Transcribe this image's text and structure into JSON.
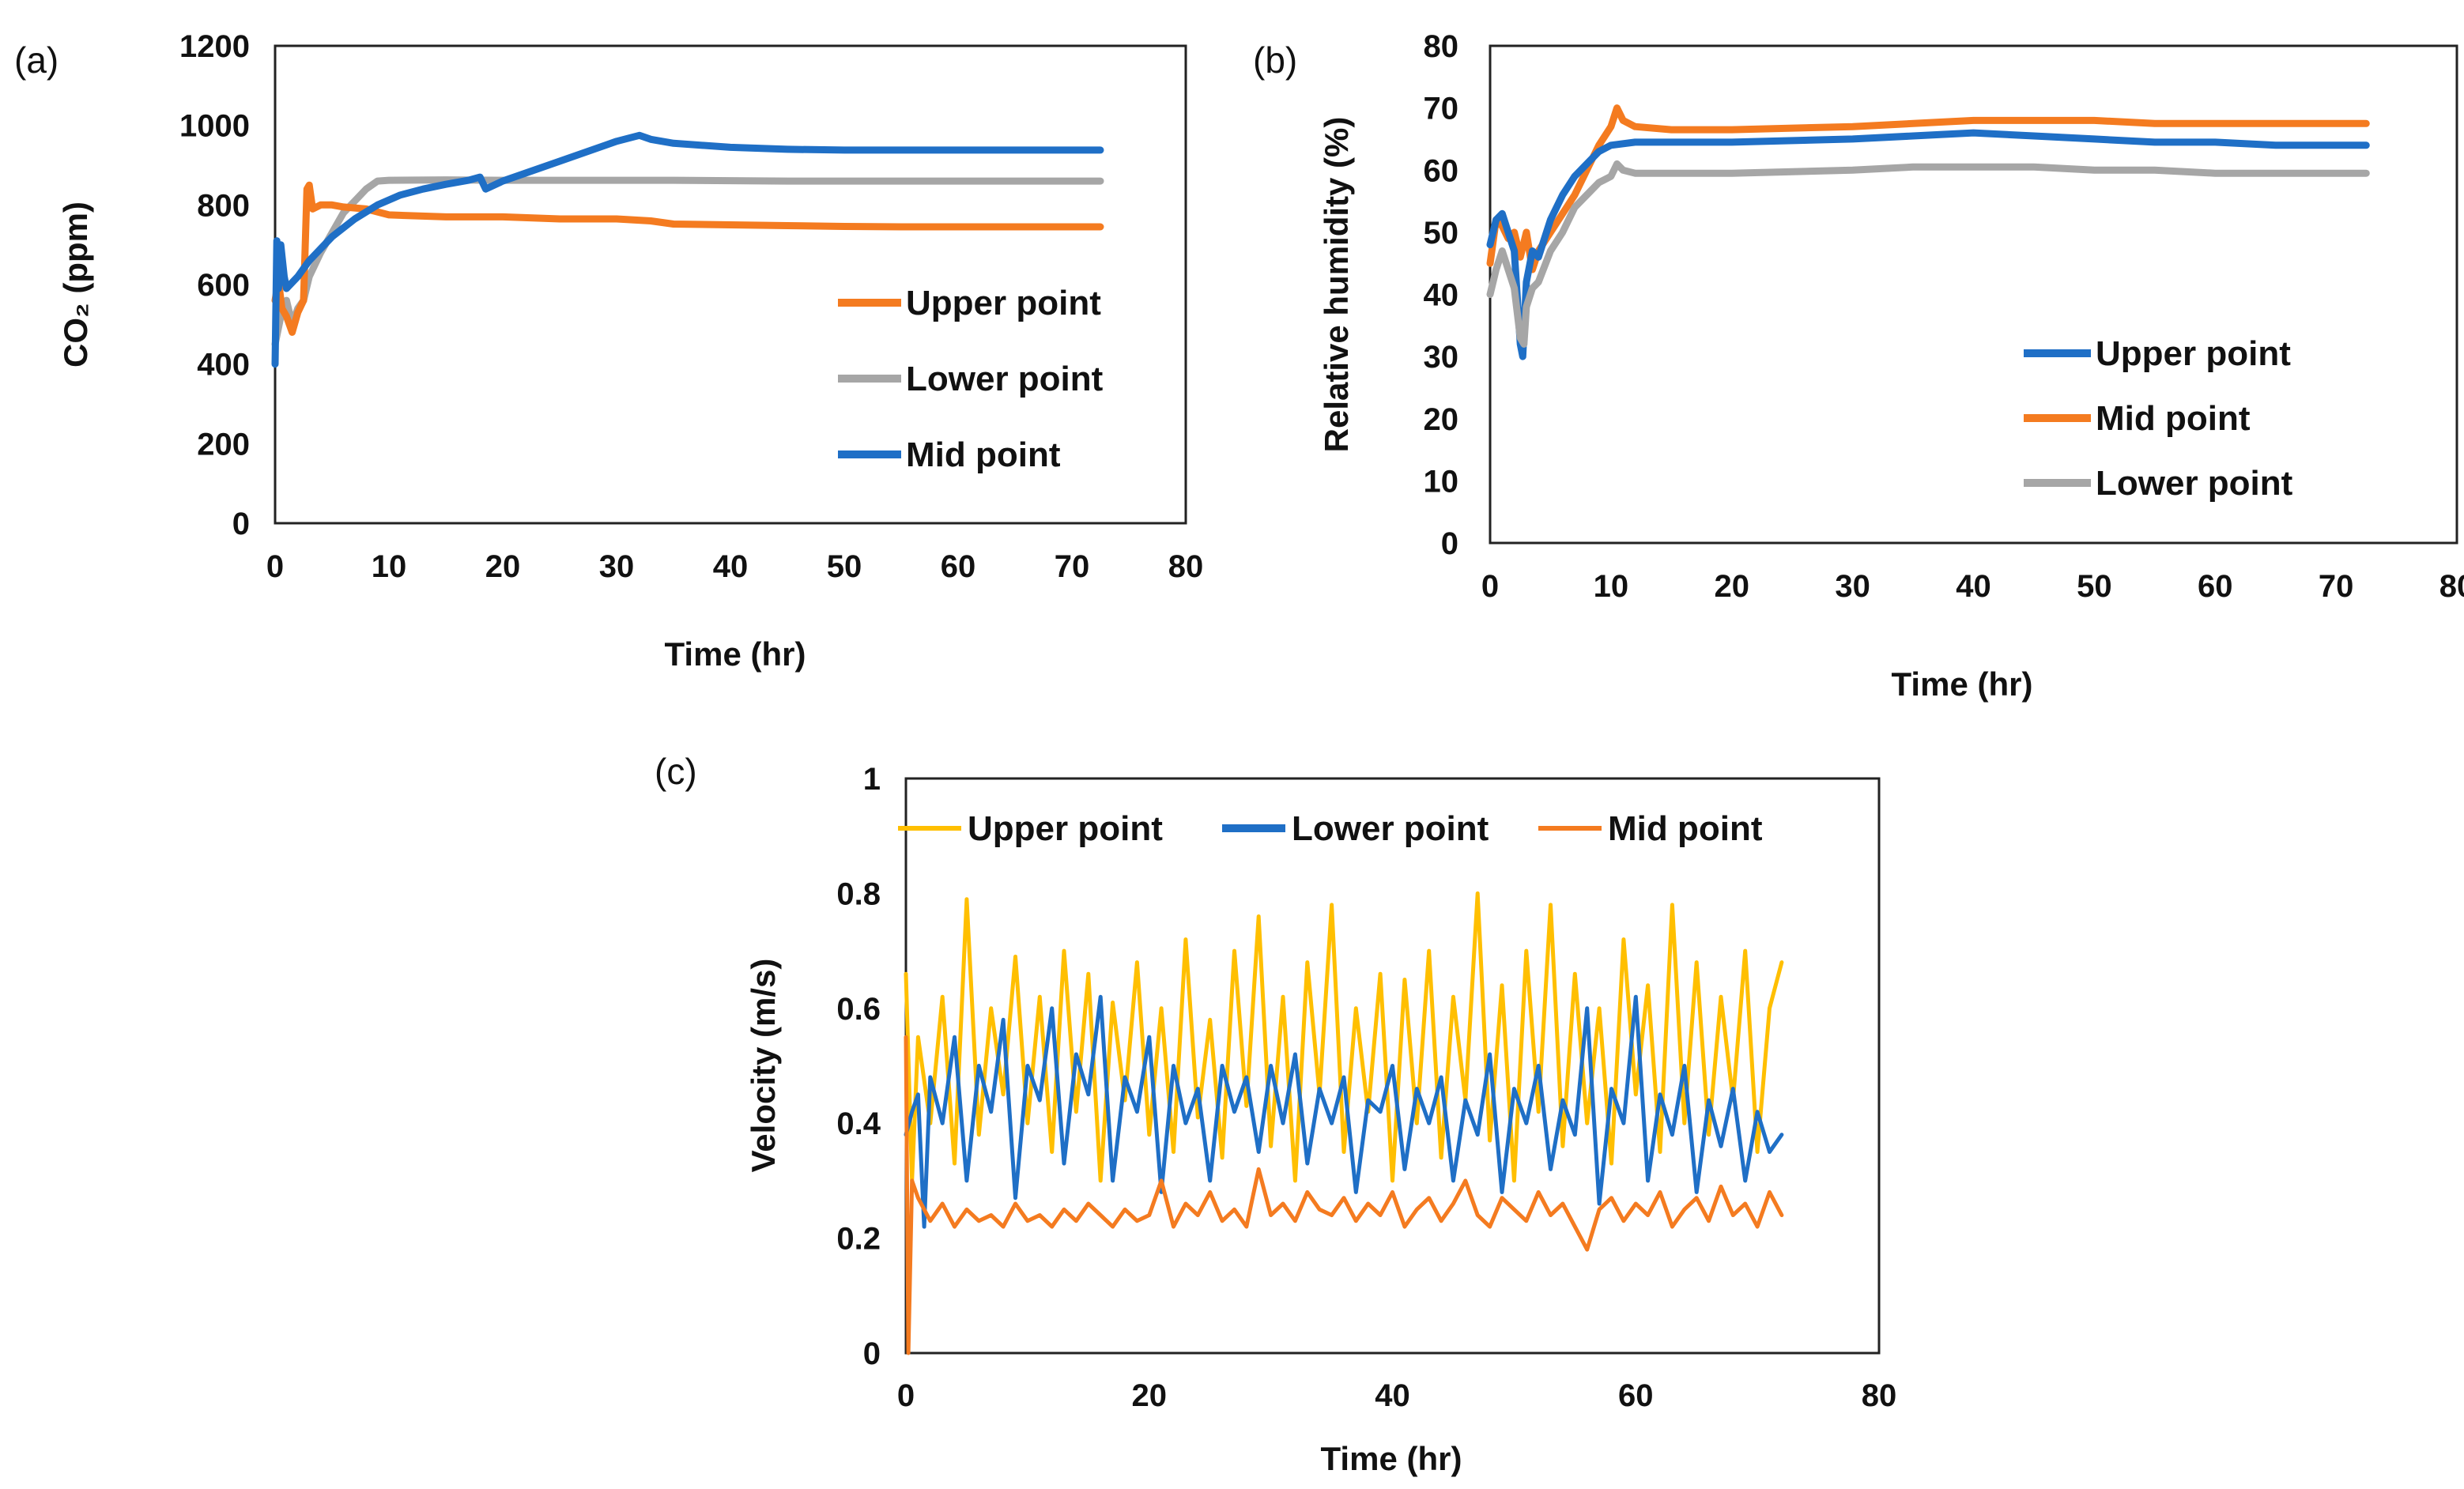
{
  "figure_labels": {
    "a": "(a)",
    "b": "(b)",
    "c": "(c)"
  },
  "colors": {
    "orange": "#F47B20",
    "gray": "#A6A6A6",
    "blue": "#1F6FC6",
    "yellow": "#FFBF00"
  },
  "chart_data": [
    {
      "type": "line",
      "panel": "(a)",
      "title": "",
      "xlabel": "Time (hr)",
      "ylabel": "CO₂ (ppm)",
      "xlim": [
        0,
        80
      ],
      "ylim": [
        0,
        1200
      ],
      "xticks": [
        0,
        10,
        20,
        30,
        40,
        50,
        60,
        70,
        80
      ],
      "yticks": [
        0,
        200,
        400,
        600,
        800,
        1000,
        1200
      ],
      "legend_position": "right",
      "series": [
        {
          "name": "Upper point",
          "color": "#F47B20",
          "x": [
            0,
            0.3,
            0.6,
            1,
            1.5,
            2,
            2.5,
            2.8,
            3.0,
            3.3,
            4,
            5,
            6,
            8,
            10,
            15,
            20,
            25,
            30,
            33,
            35,
            40,
            45,
            50,
            55,
            60,
            65,
            70,
            72.5
          ],
          "y": [
            560,
            610,
            540,
            520,
            480,
            530,
            560,
            840,
            850,
            790,
            800,
            800,
            795,
            790,
            775,
            770,
            770,
            765,
            765,
            760,
            752,
            750,
            748,
            746,
            745,
            745,
            745,
            745,
            745
          ]
        },
        {
          "name": "Lower point",
          "color": "#A6A6A6",
          "x": [
            0,
            0.5,
            1,
            1.5,
            2,
            2.5,
            3,
            4,
            5,
            6,
            7,
            8,
            9,
            10,
            15,
            20,
            25,
            30,
            35,
            40,
            45,
            50,
            55,
            60,
            65,
            70,
            72.5
          ],
          "y": [
            450,
            520,
            560,
            500,
            540,
            560,
            620,
            680,
            730,
            780,
            810,
            840,
            860,
            862,
            863,
            862,
            862,
            862,
            862,
            861,
            860,
            860,
            860,
            860,
            860,
            860,
            860
          ]
        },
        {
          "name": "Mid point",
          "color": "#1F6FC6",
          "x": [
            0,
            0.15,
            0.3,
            0.5,
            0.8,
            1,
            2,
            3,
            5,
            7,
            9,
            11,
            13,
            15,
            17,
            18,
            18.5,
            20,
            25,
            30,
            32,
            33,
            35,
            40,
            45,
            50,
            55,
            60,
            65,
            70,
            72.5
          ],
          "y": [
            400,
            710,
            590,
            700,
            620,
            590,
            620,
            660,
            720,
            765,
            800,
            825,
            840,
            852,
            862,
            870,
            840,
            860,
            910,
            960,
            975,
            965,
            955,
            945,
            940,
            938,
            938,
            938,
            938,
            938,
            938
          ]
        }
      ]
    },
    {
      "type": "line",
      "panel": "(b)",
      "title": "",
      "xlabel": "Time (hr)",
      "ylabel": "Relative humidity (%)",
      "xlim": [
        0,
        80
      ],
      "ylim": [
        0,
        80
      ],
      "xticks": [
        0,
        10,
        20,
        30,
        40,
        50,
        60,
        70,
        80
      ],
      "yticks": [
        0,
        10,
        20,
        30,
        40,
        50,
        60,
        70,
        80
      ],
      "legend_position": "right",
      "series": [
        {
          "name": "Upper point",
          "color": "#1F6FC6",
          "x": [
            0,
            0.5,
            1,
            1.5,
            2,
            2.5,
            2.7,
            3,
            3.5,
            4,
            5,
            6,
            7,
            8,
            9,
            10,
            12,
            15,
            20,
            30,
            35,
            40,
            45,
            50,
            55,
            60,
            65,
            70,
            72.5
          ],
          "y": [
            48,
            52,
            53,
            50,
            47,
            32,
            30,
            42,
            47,
            46,
            52,
            56,
            59,
            61,
            63,
            64,
            64.5,
            64.5,
            64.5,
            65,
            65.5,
            66,
            65.5,
            65,
            64.5,
            64.5,
            64,
            64,
            64
          ]
        },
        {
          "name": "Mid point",
          "color": "#F47B20",
          "x": [
            0,
            0.5,
            1,
            1.5,
            2,
            2.5,
            3,
            3.5,
            4,
            5,
            6,
            7,
            8,
            9,
            10,
            10.5,
            11,
            12,
            15,
            20,
            30,
            35,
            40,
            45,
            50,
            55,
            60,
            65,
            70,
            72.5
          ],
          "y": [
            45,
            52,
            51,
            49,
            50,
            46,
            50,
            44,
            47,
            50,
            53,
            56,
            60,
            64,
            67,
            70,
            68,
            67,
            66.5,
            66.5,
            67,
            67.5,
            68,
            68,
            68,
            67.5,
            67.5,
            67.5,
            67.5,
            67.5
          ]
        },
        {
          "name": "Lower point",
          "color": "#A6A6A6",
          "x": [
            0,
            0.5,
            1,
            1.5,
            2,
            2.5,
            2.8,
            3,
            3.5,
            4,
            5,
            6,
            7,
            8,
            9,
            10,
            10.5,
            11,
            12,
            15,
            20,
            30,
            35,
            40,
            45,
            50,
            55,
            60,
            65,
            70,
            72.5
          ],
          "y": [
            40,
            44,
            47,
            44,
            41,
            33,
            32,
            38,
            41,
            42,
            47,
            50,
            54,
            56,
            58,
            59,
            61,
            60,
            59.5,
            59.5,
            59.5,
            60,
            60.5,
            60.5,
            60.5,
            60,
            60,
            59.5,
            59.5,
            59.5,
            59.5
          ]
        }
      ]
    },
    {
      "type": "line",
      "panel": "(c)",
      "title": "",
      "xlabel": "Time (hr)",
      "ylabel": "Velocity (m/s)",
      "xlim": [
        0,
        80
      ],
      "ylim": [
        0,
        1
      ],
      "xticks": [
        0,
        20,
        40,
        60,
        80
      ],
      "yticks": [
        0,
        0.2,
        0.4,
        0.6,
        0.8,
        1
      ],
      "legend_position": "top",
      "series": [
        {
          "name": "Upper point",
          "color": "#FFBF00",
          "x": [
            0,
            0.5,
            1,
            2,
            3,
            4,
            5,
            6,
            7,
            8,
            9,
            10,
            11,
            12,
            13,
            14,
            15,
            16,
            17,
            18,
            19,
            20,
            21,
            22,
            23,
            24,
            25,
            26,
            27,
            28,
            29,
            30,
            31,
            32,
            33,
            34,
            35,
            36,
            37,
            38,
            39,
            40,
            41,
            42,
            43,
            44,
            45,
            46,
            47,
            48,
            49,
            50,
            51,
            52,
            53,
            54,
            55,
            56,
            57,
            58,
            59,
            60,
            61,
            62,
            63,
            64,
            65,
            66,
            67,
            68,
            69,
            70,
            71,
            72
          ],
          "y": [
            0.66,
            0.3,
            0.55,
            0.4,
            0.62,
            0.33,
            0.79,
            0.38,
            0.6,
            0.45,
            0.69,
            0.4,
            0.62,
            0.35,
            0.7,
            0.42,
            0.66,
            0.3,
            0.61,
            0.44,
            0.68,
            0.38,
            0.6,
            0.35,
            0.72,
            0.41,
            0.58,
            0.34,
            0.7,
            0.43,
            0.76,
            0.36,
            0.62,
            0.3,
            0.68,
            0.45,
            0.78,
            0.35,
            0.6,
            0.42,
            0.66,
            0.3,
            0.65,
            0.4,
            0.7,
            0.34,
            0.62,
            0.44,
            0.8,
            0.37,
            0.64,
            0.3,
            0.7,
            0.42,
            0.78,
            0.36,
            0.66,
            0.4,
            0.6,
            0.33,
            0.72,
            0.45,
            0.64,
            0.35,
            0.78,
            0.4,
            0.68,
            0.38,
            0.62,
            0.44,
            0.7,
            0.35,
            0.6,
            0.68
          ]
        },
        {
          "name": "Lower point",
          "color": "#1F6FC6",
          "x": [
            0,
            0.5,
            1,
            1.5,
            2,
            3,
            4,
            5,
            6,
            7,
            8,
            9,
            10,
            11,
            12,
            13,
            14,
            15,
            16,
            17,
            18,
            19,
            20,
            21,
            22,
            23,
            24,
            25,
            26,
            27,
            28,
            29,
            30,
            31,
            32,
            33,
            34,
            35,
            36,
            37,
            38,
            39,
            40,
            41,
            42,
            43,
            44,
            45,
            46,
            47,
            48,
            49,
            50,
            51,
            52,
            53,
            54,
            55,
            56,
            57,
            58,
            59,
            60,
            61,
            62,
            63,
            64,
            65,
            66,
            67,
            68,
            69,
            70,
            71,
            72
          ],
          "y": [
            0.38,
            0.42,
            0.45,
            0.22,
            0.48,
            0.4,
            0.55,
            0.3,
            0.5,
            0.42,
            0.58,
            0.27,
            0.5,
            0.44,
            0.6,
            0.33,
            0.52,
            0.45,
            0.62,
            0.3,
            0.48,
            0.42,
            0.55,
            0.28,
            0.5,
            0.4,
            0.46,
            0.3,
            0.5,
            0.42,
            0.48,
            0.35,
            0.5,
            0.4,
            0.52,
            0.33,
            0.46,
            0.4,
            0.48,
            0.28,
            0.44,
            0.42,
            0.5,
            0.32,
            0.46,
            0.4,
            0.48,
            0.3,
            0.44,
            0.38,
            0.52,
            0.28,
            0.46,
            0.4,
            0.5,
            0.32,
            0.44,
            0.38,
            0.6,
            0.26,
            0.46,
            0.4,
            0.62,
            0.3,
            0.45,
            0.38,
            0.5,
            0.28,
            0.44,
            0.36,
            0.46,
            0.3,
            0.42,
            0.35,
            0.38
          ]
        },
        {
          "name": "Mid point",
          "color": "#F47B20",
          "x": [
            0,
            0.2,
            0.5,
            1,
            2,
            3,
            4,
            5,
            6,
            7,
            8,
            9,
            10,
            11,
            12,
            13,
            14,
            15,
            16,
            17,
            18,
            19,
            20,
            21,
            22,
            23,
            24,
            25,
            26,
            27,
            28,
            29,
            30,
            31,
            32,
            33,
            34,
            35,
            36,
            37,
            38,
            39,
            40,
            41,
            42,
            43,
            44,
            45,
            46,
            47,
            48,
            49,
            50,
            51,
            52,
            53,
            54,
            55,
            56,
            57,
            58,
            59,
            60,
            61,
            62,
            63,
            64,
            65,
            66,
            67,
            68,
            69,
            70,
            71,
            72
          ],
          "y": [
            0.55,
            0.0,
            0.3,
            0.27,
            0.23,
            0.26,
            0.22,
            0.25,
            0.23,
            0.24,
            0.22,
            0.26,
            0.23,
            0.24,
            0.22,
            0.25,
            0.23,
            0.26,
            0.24,
            0.22,
            0.25,
            0.23,
            0.24,
            0.3,
            0.22,
            0.26,
            0.24,
            0.28,
            0.23,
            0.25,
            0.22,
            0.32,
            0.24,
            0.26,
            0.23,
            0.28,
            0.25,
            0.24,
            0.27,
            0.23,
            0.26,
            0.24,
            0.28,
            0.22,
            0.25,
            0.27,
            0.23,
            0.26,
            0.3,
            0.24,
            0.22,
            0.27,
            0.25,
            0.23,
            0.28,
            0.24,
            0.26,
            0.22,
            0.18,
            0.25,
            0.27,
            0.23,
            0.26,
            0.24,
            0.28,
            0.22,
            0.25,
            0.27,
            0.23,
            0.29,
            0.24,
            0.26,
            0.22,
            0.28,
            0.24
          ]
        }
      ]
    }
  ]
}
